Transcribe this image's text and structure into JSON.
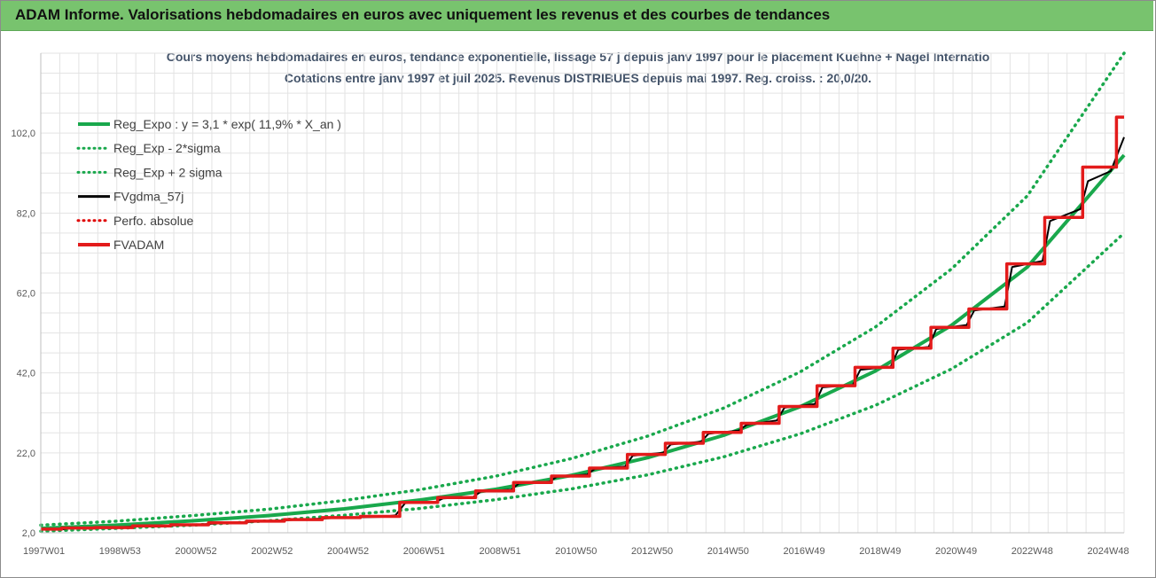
{
  "header": {
    "title": "ADAM Informe. Valorisations hebdomadaires en euros avec uniquement les revenus et des courbes de tendances"
  },
  "chart_data": {
    "type": "line",
    "title": "Cours moyens hebdomadaires en euros, tendance exponentielle, lissage 57 j depuis janv 1997  pour le placement Kuehne + Nagel Internatio",
    "subtitle": "Cotations entre janv 1997 et juil 2025. Revenus DISTRIBUES depuis mai 1997. Reg. croiss. : 20,0/20.",
    "xlabel": "",
    "ylabel": "",
    "ylim": [
      2,
      122
    ],
    "xlim": [
      1997.0,
      2025.55
    ],
    "y_ticks": [
      "2,0",
      "22,0",
      "42,0",
      "62,0",
      "82,0",
      "102,0"
    ],
    "x_ticks": [
      "1997W01",
      "1998W53",
      "2000W52",
      "2002W52",
      "2004W52",
      "2006W51",
      "2008W51",
      "2010W50",
      "2012W50",
      "2014W50",
      "2016W49",
      "2018W49",
      "2020W49",
      "2022W48",
      "2024W48"
    ],
    "grid": true,
    "legend_position": "top-left",
    "series": [
      {
        "name": "Reg_Expo : y = 3,1 * exp( 11,9% *  X_an )",
        "color": "#19a84c",
        "style": "solid",
        "x": [
          1997.0,
          1999.0,
          2001.0,
          2003.0,
          2005.0,
          2007.0,
          2009.0,
          2011.0,
          2013.0,
          2015.0,
          2017.0,
          2019.0,
          2021.0,
          2023.0,
          2025.55
        ],
        "values": [
          3.1,
          3.9,
          5.0,
          6.3,
          8.0,
          10.2,
          12.9,
          16.4,
          20.8,
          26.4,
          33.5,
          42.5,
          53.9,
          68.5,
          96.5
        ]
      },
      {
        "name": "Reg_Exp - 2*sigma",
        "color": "#19a84c",
        "style": "dotted",
        "x": [
          1997.0,
          1999.0,
          2001.0,
          2003.0,
          2005.0,
          2007.0,
          2009.0,
          2011.0,
          2013.0,
          2015.0,
          2017.0,
          2019.0,
          2021.0,
          2023.0,
          2025.55
        ],
        "values": [
          2.4,
          3.1,
          3.9,
          5.0,
          6.4,
          8.1,
          10.3,
          13.0,
          16.5,
          21.0,
          26.7,
          33.9,
          43.0,
          54.6,
          77.0
        ]
      },
      {
        "name": "Reg_Exp + 2 sigma",
        "color": "#19a84c",
        "style": "dotted",
        "x": [
          1997.0,
          1999.0,
          2001.0,
          2003.0,
          2005.0,
          2007.0,
          2009.0,
          2011.0,
          2013.0,
          2015.0,
          2017.0,
          2019.0,
          2021.0,
          2023.0,
          2025.55
        ],
        "values": [
          3.9,
          4.9,
          6.3,
          7.9,
          10.1,
          12.8,
          16.2,
          20.6,
          26.2,
          33.2,
          42.2,
          53.5,
          68.0,
          86.3,
          122.0
        ]
      },
      {
        "name": "FVgdma_57j",
        "color": "#000000",
        "style": "solid",
        "x": [
          1997.0,
          1997.55,
          1997.9,
          1999.0,
          2000.0,
          2001.0,
          2002.0,
          2003.0,
          2004.0,
          2005.0,
          2006.0,
          2006.35,
          2006.6,
          2007.4,
          2007.6,
          2008.4,
          2008.6,
          2009.4,
          2009.6,
          2010.4,
          2010.6,
          2011.4,
          2011.6,
          2012.4,
          2012.6,
          2013.4,
          2013.6,
          2014.4,
          2014.6,
          2015.4,
          2015.6,
          2016.4,
          2016.6,
          2017.4,
          2017.6,
          2018.4,
          2018.6,
          2019.4,
          2019.6,
          2020.4,
          2020.6,
          2021.4,
          2021.6,
          2022.4,
          2022.6,
          2023.4,
          2023.6,
          2024.4,
          2024.6,
          2025.2,
          2025.55
        ],
        "values": [
          2.8,
          2.85,
          3.3,
          3.4,
          3.7,
          4.0,
          4.5,
          4.9,
          5.4,
          5.8,
          6.0,
          6.4,
          9.4,
          9.7,
          10.6,
          11.0,
          12.3,
          12.8,
          14.3,
          14.8,
          16.0,
          16.6,
          18.0,
          18.6,
          21.3,
          22.0,
          24.1,
          24.8,
          26.8,
          27.6,
          29.0,
          30.1,
          33.3,
          34.2,
          38.4,
          39.0,
          42.8,
          43.6,
          47.8,
          48.5,
          53.0,
          54.0,
          57.6,
          58.6,
          68.5,
          70.0,
          80.0,
          83.0,
          90.0,
          92.5,
          101.0
        ]
      },
      {
        "name": "Perfo. absolue",
        "color": "#e00000",
        "style": "dotted",
        "x": [],
        "values": []
      },
      {
        "name": "FVADAM",
        "color": "#e31b1b",
        "style": "solid-thick",
        "x": [
          1997.0,
          1997.55,
          1997.55,
          1998.42,
          1998.42,
          1999.42,
          1999.42,
          2000.42,
          2000.42,
          2001.42,
          2001.42,
          2002.42,
          2002.42,
          2003.42,
          2003.42,
          2004.42,
          2004.42,
          2005.42,
          2005.42,
          2006.46,
          2006.46,
          2007.46,
          2007.46,
          2008.46,
          2008.46,
          2009.46,
          2009.46,
          2010.46,
          2010.46,
          2011.46,
          2011.46,
          2012.46,
          2012.46,
          2013.46,
          2013.46,
          2014.46,
          2014.46,
          2015.46,
          2015.46,
          2016.46,
          2016.46,
          2017.46,
          2017.46,
          2018.46,
          2018.46,
          2019.46,
          2019.46,
          2020.46,
          2020.46,
          2021.46,
          2021.46,
          2022.46,
          2022.46,
          2023.46,
          2023.46,
          2024.46,
          2024.46,
          2025.35,
          2025.35,
          2025.55
        ],
        "values": [
          2.9,
          2.9,
          3.2,
          3.2,
          3.3,
          3.3,
          3.7,
          3.7,
          4.0,
          4.0,
          4.5,
          4.5,
          4.9,
          4.9,
          5.3,
          5.3,
          5.8,
          5.8,
          6.1,
          6.1,
          9.6,
          9.6,
          10.8,
          10.8,
          12.5,
          12.5,
          14.6,
          14.6,
          16.2,
          16.2,
          18.2,
          18.2,
          21.6,
          21.6,
          24.4,
          24.4,
          27.1,
          27.1,
          29.4,
          29.4,
          33.6,
          33.6,
          38.8,
          38.8,
          43.4,
          43.4,
          48.2,
          48.2,
          53.4,
          53.4,
          58.0,
          58.0,
          69.3,
          69.3,
          80.9,
          80.9,
          93.5,
          93.5,
          106.0,
          106.0
        ]
      }
    ]
  }
}
